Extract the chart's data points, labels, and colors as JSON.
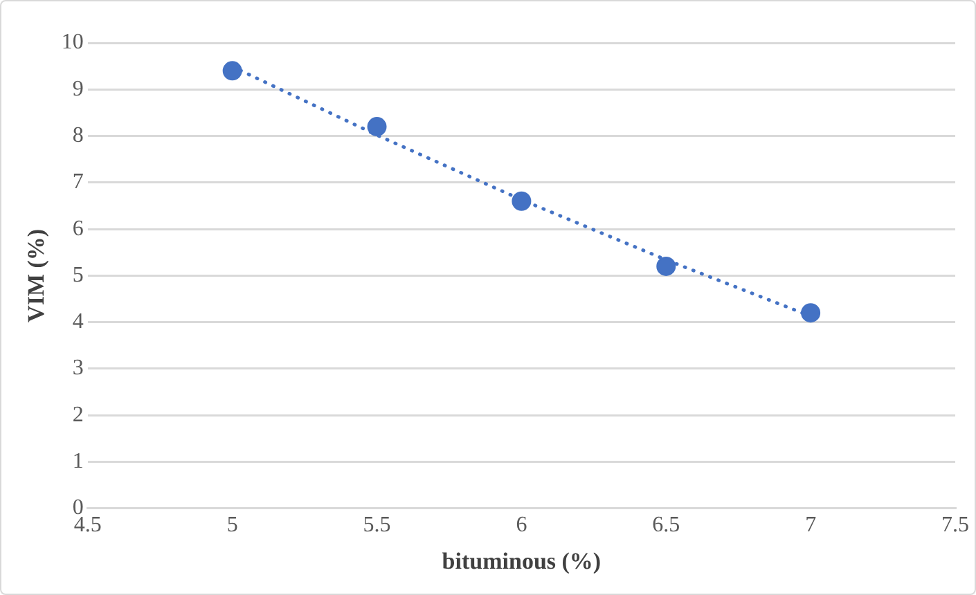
{
  "chart_data": {
    "type": "scatter",
    "xlabel": "bituminous (%)",
    "ylabel": "VIM (%)",
    "x": [
      5,
      5.5,
      6,
      6.5,
      7
    ],
    "series": [
      {
        "color": "#4472c4",
        "values": [
          9.4,
          8.2,
          6.6,
          5.2,
          4.2
        ],
        "marker": "circle"
      },
      {
        "type": "line",
        "color": "#4472c4",
        "x": [
          5,
          5.5,
          6,
          6.5,
          7
        ],
        "values": [
          9.49,
          8.02,
          6.63,
          5.34,
          4.13
        ],
        "marker": "none",
        "line_style": "dotted"
      }
    ],
    "xlim": [
      4.5,
      7.5
    ],
    "xticks": [
      4.5,
      5,
      5.5,
      6,
      6.5,
      7,
      7.5
    ],
    "ylim": [
      0,
      10
    ],
    "yticks": [
      0,
      1,
      2,
      3,
      4,
      5,
      6,
      7,
      8,
      9,
      10
    ],
    "grid": "y",
    "legend": false
  }
}
